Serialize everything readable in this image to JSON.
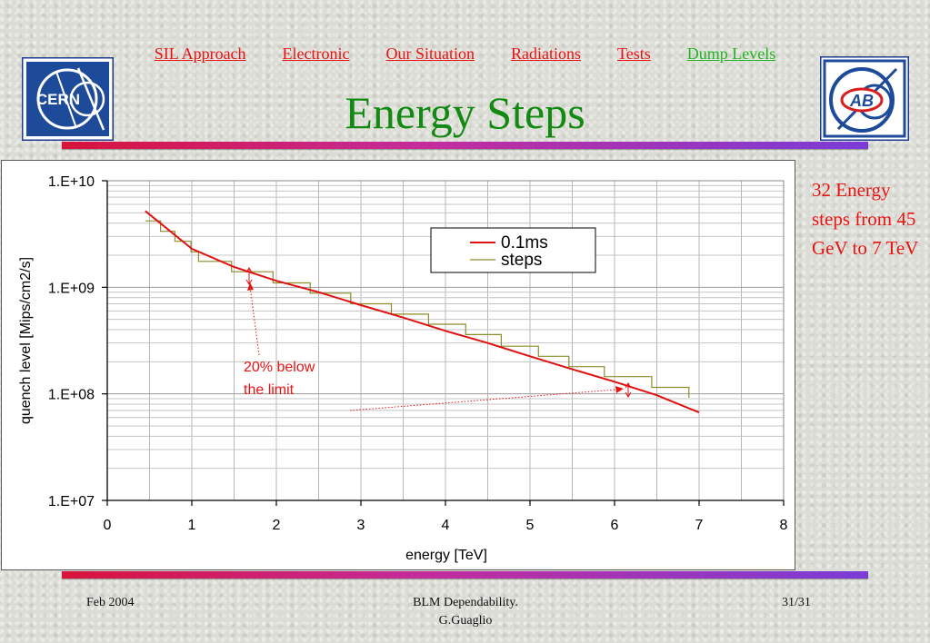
{
  "nav": {
    "items": [
      {
        "label": "SIL Approach",
        "active": false
      },
      {
        "label": "Electronic",
        "active": false
      },
      {
        "label": "Our Situation",
        "active": false
      },
      {
        "label": "Radiations",
        "active": false
      },
      {
        "label": "Tests",
        "active": false
      },
      {
        "label": "Dump Levels",
        "active": true
      }
    ]
  },
  "header": {
    "title": "Energy Steps",
    "logo_left_text": "CERN",
    "logo_right_text": "AB"
  },
  "side_note": "32 Energy steps from 45 GeV to 7 TeV",
  "annotation": {
    "line1": "20% below",
    "line2": "the limit"
  },
  "footer": {
    "date": "Feb 2004",
    "center_line1": "BLM Dependability.",
    "center_line2": "G.Guaglio",
    "page": "31/31"
  },
  "colors": {
    "accent_red": "#e81212",
    "title_green": "#128a12",
    "series_0_1ms": "#e01010",
    "series_steps": "#8c8c2a"
  },
  "chart_data": {
    "type": "line",
    "xlabel": "energy [TeV]",
    "ylabel": "quench level [Mips/cm2/s]",
    "xlim": [
      0,
      8
    ],
    "ylim": [
      10000000,
      10000000000
    ],
    "yscale": "log",
    "xticks": [
      "0",
      "1",
      "2",
      "3",
      "4",
      "5",
      "6",
      "7",
      "8"
    ],
    "yticks": [
      "1.E+07",
      "1.E+08",
      "1.E+09",
      "1.E+10"
    ],
    "grid": true,
    "legend": "top-right",
    "series": [
      {
        "name": "0.1ms",
        "x": [
          0.45,
          1.0,
          1.5,
          2.0,
          2.5,
          3.0,
          3.5,
          4.0,
          4.5,
          5.0,
          5.5,
          6.0,
          6.5,
          7.0
        ],
        "y": [
          5200000000,
          2300000000,
          1550000000,
          1150000000,
          900000000,
          680000000,
          520000000,
          390000000,
          300000000,
          225000000,
          170000000,
          130000000,
          97000000,
          67000000
        ]
      },
      {
        "name": "steps",
        "x": [
          0.45,
          0.63,
          0.63,
          0.8,
          0.8,
          0.99,
          0.99,
          1.08,
          1.08,
          1.47,
          1.47,
          1.96,
          1.96,
          2.4,
          2.4,
          2.88,
          2.88,
          3.36,
          3.36,
          3.8,
          3.8,
          4.24,
          4.24,
          4.66,
          4.66,
          5.1,
          5.1,
          5.46,
          5.46,
          5.88,
          5.88,
          6.44,
          6.44,
          6.88,
          6.88
        ],
        "y": [
          4200000000,
          4200000000,
          3350000000,
          3350000000,
          2700000000,
          2700000000,
          2150000000,
          2150000000,
          1750000000,
          1750000000,
          1400000000,
          1400000000,
          1100000000,
          1100000000,
          880000000,
          880000000,
          700000000,
          700000000,
          560000000,
          560000000,
          450000000,
          450000000,
          360000000,
          360000000,
          280000000,
          280000000,
          225000000,
          225000000,
          180000000,
          180000000,
          145000000,
          145000000,
          115000000,
          115000000,
          92000000
        ]
      }
    ]
  }
}
